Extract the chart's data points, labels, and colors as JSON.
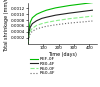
{
  "title": "",
  "xlabel": "Time (days)",
  "ylabel": "Total shrinkage (mm/m)",
  "xlim": [
    0,
    450
  ],
  "ylim": [
    0,
    0.0014
  ],
  "x_ticks": [
    100,
    200,
    300,
    400
  ],
  "y_ticks": [
    0.0002,
    0.0004,
    0.0006,
    0.0008,
    0.001,
    0.0012
  ],
  "series": [
    {
      "label": "REF-0F",
      "color": "#00bb00",
      "linestyle": "-",
      "marker": null,
      "markersize": 1.5,
      "linewidth": 0.8,
      "x": [
        0,
        7,
        14,
        28,
        56,
        90,
        120,
        180,
        270,
        360,
        420
      ],
      "y": [
        0,
        0.0005,
        0.00072,
        0.00088,
        0.001,
        0.00108,
        0.00114,
        0.00122,
        0.0013,
        0.00136,
        0.0014
      ]
    },
    {
      "label": "R30-4F",
      "color": "#222222",
      "linestyle": "-",
      "marker": null,
      "markersize": 1.5,
      "linewidth": 0.8,
      "x": [
        0,
        7,
        14,
        28,
        56,
        90,
        120,
        180,
        270,
        360,
        420
      ],
      "y": [
        0,
        0.00038,
        0.00055,
        0.00068,
        0.00078,
        0.00086,
        0.0009,
        0.00097,
        0.00104,
        0.0011,
        0.00114
      ]
    },
    {
      "label": "R50-0F",
      "color": "#88ee88",
      "linestyle": "--",
      "marker": null,
      "markersize": 1.5,
      "linewidth": 0.8,
      "x": [
        0,
        7,
        14,
        28,
        56,
        90,
        120,
        180,
        270,
        360,
        420
      ],
      "y": [
        0,
        0.00028,
        0.00042,
        0.00052,
        0.00062,
        0.00068,
        0.00072,
        0.00078,
        0.00085,
        0.0009,
        0.00094
      ]
    },
    {
      "label": "R50-4F",
      "color": "#666666",
      "linestyle": ":",
      "marker": null,
      "markersize": 1.5,
      "linewidth": 0.8,
      "x": [
        0,
        7,
        14,
        28,
        56,
        90,
        120,
        180,
        270,
        360,
        420
      ],
      "y": [
        0,
        0.00022,
        0.00033,
        0.00042,
        0.0005,
        0.00055,
        0.00059,
        0.00064,
        0.0007,
        0.00074,
        0.00077
      ]
    }
  ],
  "legend_fontsize": 3.2,
  "axis_label_fontsize": 3.5,
  "tick_fontsize": 3.0,
  "background_color": "#ffffff"
}
